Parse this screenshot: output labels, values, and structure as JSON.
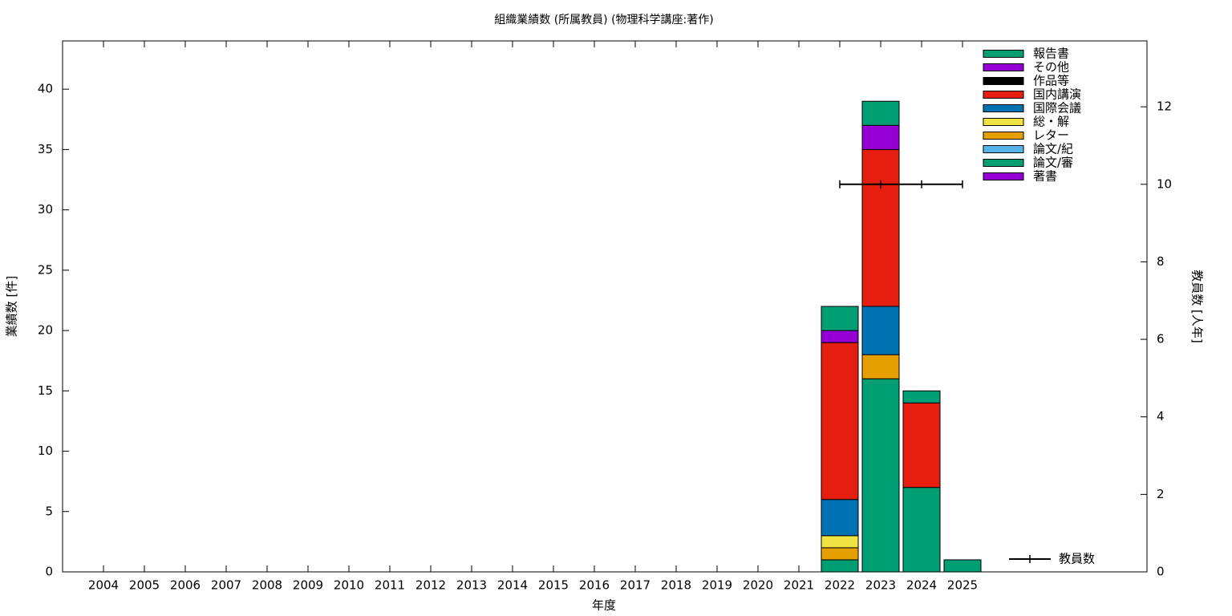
{
  "chart_data": {
    "type": "stacked_bar",
    "title": "組織業績数 (所属教員) (物理科学講座:著作)",
    "x_label": "年度",
    "y_label": "業績数 [件]",
    "y2_label": "教員数 [人年]",
    "categories": [
      "2004",
      "2005",
      "2006",
      "2007",
      "2008",
      "2009",
      "2010",
      "2011",
      "2012",
      "2013",
      "2014",
      "2015",
      "2016",
      "2017",
      "2018",
      "2019",
      "2020",
      "2021",
      "2022",
      "2023",
      "2024",
      "2025"
    ],
    "series": [
      {
        "name": "著書",
        "color": "#9400d3",
        "values": [
          0,
          0,
          0,
          0,
          0,
          0,
          0,
          0,
          0,
          0,
          0,
          0,
          0,
          0,
          0,
          0,
          0,
          0,
          0,
          0,
          0,
          0
        ]
      },
      {
        "name": "論文/審",
        "color": "#009e73",
        "values": [
          0,
          0,
          0,
          0,
          0,
          0,
          0,
          0,
          0,
          0,
          0,
          0,
          0,
          0,
          0,
          0,
          0,
          0,
          1,
          16,
          7,
          1
        ]
      },
      {
        "name": "論文/紀",
        "color": "#56b4e9",
        "values": [
          0,
          0,
          0,
          0,
          0,
          0,
          0,
          0,
          0,
          0,
          0,
          0,
          0,
          0,
          0,
          0,
          0,
          0,
          0,
          0,
          0,
          0
        ]
      },
      {
        "name": "レター",
        "color": "#e69f00",
        "values": [
          0,
          0,
          0,
          0,
          0,
          0,
          0,
          0,
          0,
          0,
          0,
          0,
          0,
          0,
          0,
          0,
          0,
          0,
          1,
          2,
          0,
          0
        ]
      },
      {
        "name": "総・解",
        "color": "#f0e442",
        "values": [
          0,
          0,
          0,
          0,
          0,
          0,
          0,
          0,
          0,
          0,
          0,
          0,
          0,
          0,
          0,
          0,
          0,
          0,
          1,
          0,
          0,
          0
        ]
      },
      {
        "name": "国際会議",
        "color": "#0072b2",
        "values": [
          0,
          0,
          0,
          0,
          0,
          0,
          0,
          0,
          0,
          0,
          0,
          0,
          0,
          0,
          0,
          0,
          0,
          0,
          3,
          4,
          0,
          0
        ]
      },
      {
        "name": "国内講演",
        "color": "#e51e10",
        "values": [
          0,
          0,
          0,
          0,
          0,
          0,
          0,
          0,
          0,
          0,
          0,
          0,
          0,
          0,
          0,
          0,
          0,
          0,
          13,
          13,
          7,
          0
        ]
      },
      {
        "name": "作品等",
        "color": "#000000",
        "values": [
          0,
          0,
          0,
          0,
          0,
          0,
          0,
          0,
          0,
          0,
          0,
          0,
          0,
          0,
          0,
          0,
          0,
          0,
          0,
          0,
          0,
          0
        ]
      },
      {
        "name": "その他",
        "color": "#9400d3",
        "values": [
          0,
          0,
          0,
          0,
          0,
          0,
          0,
          0,
          0,
          0,
          0,
          0,
          0,
          0,
          0,
          0,
          0,
          0,
          1,
          2,
          0,
          0
        ]
      },
      {
        "name": "報告書",
        "color": "#009e73",
        "values": [
          0,
          0,
          0,
          0,
          0,
          0,
          0,
          0,
          0,
          0,
          0,
          0,
          0,
          0,
          0,
          0,
          0,
          0,
          2,
          2,
          1,
          0
        ]
      },
      {
        "name": "教員数",
        "color": "#000000",
        "type": "line",
        "axis": "y2",
        "values": [
          null,
          null,
          null,
          null,
          null,
          null,
          null,
          null,
          null,
          null,
          null,
          null,
          null,
          null,
          null,
          null,
          null,
          null,
          10,
          10,
          10,
          10
        ]
      }
    ],
    "ylim": [
      0,
      44
    ],
    "yticks": [
      0,
      5,
      10,
      15,
      20,
      25,
      30,
      35,
      40
    ],
    "y2lim": [
      0,
      13.7
    ],
    "y2ticks": [
      0,
      2,
      4,
      6,
      8,
      10,
      12
    ]
  }
}
